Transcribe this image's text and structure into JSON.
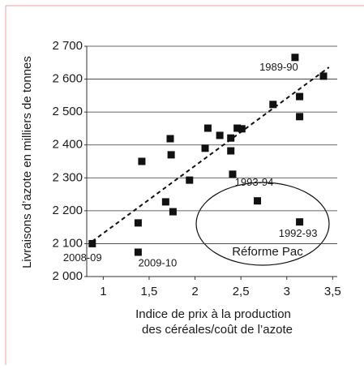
{
  "chart_data": {
    "type": "scatter",
    "ylabel": "Livraisons d’azote en milliers de tonnes",
    "xlabel_lines": [
      "Indice de prix à la production",
      "des céréales/coût de l’azote"
    ],
    "annotation": "Réforme Pac",
    "xlim": [
      0.82,
      3.55
    ],
    "ylim": [
      2000,
      2700
    ],
    "xticks": [
      1,
      {
        "value": 1.5,
        "label": "1,5"
      },
      2,
      {
        "value": 2.5,
        "label": "2,5"
      },
      3,
      {
        "value": 3.5,
        "label": "3,5"
      }
    ],
    "yticks": [
      {
        "value": 2000,
        "label": "2 000"
      },
      {
        "value": 2100,
        "label": "2 100"
      },
      {
        "value": 2200,
        "label": "2 200"
      },
      {
        "value": 2300,
        "label": "2 300"
      },
      {
        "value": 2400,
        "label": "2 400"
      },
      {
        "value": 2500,
        "label": "2 500"
      },
      {
        "value": 2600,
        "label": "2 600"
      },
      {
        "value": 2700,
        "label": "2 700"
      }
    ],
    "grid": true,
    "series": [
      {
        "color": "#111111",
        "x": [
          3.09,
          3.4,
          3.14,
          3.14,
          2.85,
          2.51,
          2.27,
          2.39,
          2.39,
          2.46,
          2.14,
          2.11,
          2.41,
          1.73,
          1.74,
          1.42,
          1.94,
          1.68,
          1.76,
          1.38,
          0.88,
          1.38,
          2.68,
          3.14
        ],
        "values": [
          2666,
          2609,
          2547,
          2486,
          2523,
          2449,
          2429,
          2421,
          2382,
          2451,
          2451,
          2390,
          2311,
          2419,
          2370,
          2350,
          2293,
          2227,
          2197,
          2163,
          2100,
          2074,
          2230,
          2166
        ],
        "point_labels": [
          "1989-90",
          null,
          null,
          null,
          null,
          null,
          null,
          null,
          null,
          null,
          null,
          null,
          null,
          null,
          null,
          null,
          null,
          null,
          null,
          null,
          "2008-09",
          "2009-10",
          "1993-94",
          "1992-93"
        ]
      }
    ],
    "trend": {
      "x": [
        0.88,
        3.46
      ],
      "values": [
        2107,
        2636
      ]
    }
  }
}
